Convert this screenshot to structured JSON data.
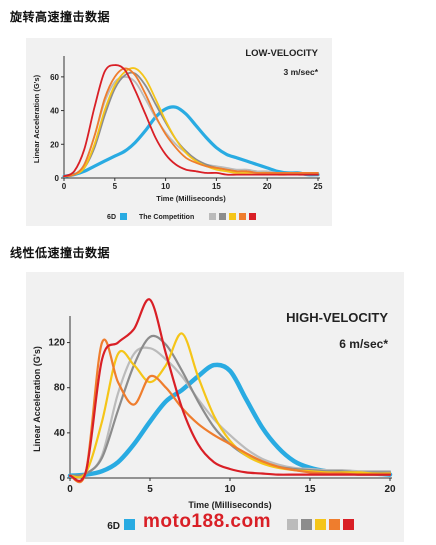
{
  "headings": {
    "top": "旋转高速撞击数据",
    "middle": "线性低速撞击数据"
  },
  "watermark": "moto188.com",
  "chart_data": [
    {
      "type": "line",
      "title": "LOW-VELOCITY",
      "subtitle": "3 m/sec*",
      "xlabel": "Time (Milliseconds)",
      "ylabel": "Linear Acceleration (G's)",
      "xlim": [
        0,
        25
      ],
      "ylim": [
        0,
        70
      ],
      "xticks": [
        "0",
        "5",
        "10",
        "15",
        "20",
        "25"
      ],
      "yticks": [
        "0",
        "20",
        "40",
        "60"
      ],
      "legend": {
        "primary": "6D",
        "secondary": "The Competition",
        "placement": "bottom"
      },
      "series": [
        {
          "name": "6D",
          "color": "#29abe2",
          "x": [
            0,
            1,
            2,
            3,
            4,
            5,
            6,
            7,
            8,
            9,
            10,
            11,
            12,
            13,
            14,
            15,
            16,
            17,
            18,
            19,
            20,
            21,
            22,
            23,
            24,
            25
          ],
          "y": [
            1,
            2,
            4,
            7,
            10,
            13,
            16,
            21,
            28,
            36,
            41,
            42,
            38,
            31,
            24,
            18,
            14,
            12,
            10,
            8,
            6,
            4,
            3,
            3,
            2,
            2
          ]
        },
        {
          "color": "#bbbbbb",
          "x": [
            0,
            1,
            2,
            3,
            4,
            5,
            6,
            7,
            8,
            9,
            10,
            11,
            12,
            13,
            14,
            15,
            16,
            17,
            18,
            19,
            20,
            21,
            22,
            23,
            24,
            25
          ],
          "y": [
            1,
            2,
            8,
            25,
            45,
            57,
            60,
            57,
            47,
            36,
            27,
            20,
            15,
            11,
            8,
            7,
            6,
            5,
            5,
            4,
            4,
            3,
            3,
            3,
            3,
            3
          ]
        },
        {
          "color": "#8c8c8c",
          "x": [
            0,
            1,
            2,
            3,
            4,
            5,
            6,
            7,
            8,
            9,
            10,
            11,
            12,
            13,
            14,
            15,
            16,
            17,
            18,
            19,
            20,
            21,
            22,
            23,
            24,
            25
          ],
          "y": [
            1,
            2,
            6,
            18,
            37,
            53,
            61,
            62,
            55,
            44,
            33,
            23,
            16,
            11,
            8,
            6,
            5,
            4,
            4,
            3,
            3,
            3,
            3,
            2,
            2,
            2
          ]
        },
        {
          "color": "#f5c518",
          "x": [
            0,
            1,
            2,
            3,
            4,
            5,
            6,
            7,
            8,
            9,
            10,
            11,
            12,
            13,
            14,
            15,
            16,
            17,
            18,
            19,
            20,
            21,
            22,
            23,
            24,
            25
          ],
          "y": [
            1,
            2,
            6,
            20,
            40,
            55,
            63,
            65,
            59,
            47,
            34,
            23,
            15,
            10,
            7,
            5,
            4,
            3,
            3,
            3,
            3,
            2,
            2,
            2,
            2,
            2
          ]
        },
        {
          "color": "#ef7d2d",
          "x": [
            0,
            1,
            2,
            3,
            4,
            5,
            6,
            7,
            8,
            9,
            10,
            11,
            12,
            13,
            14,
            15,
            16,
            17,
            18,
            19,
            20,
            21,
            22,
            23,
            24,
            25
          ],
          "y": [
            1,
            2,
            8,
            25,
            47,
            60,
            65,
            61,
            50,
            37,
            26,
            18,
            12,
            9,
            7,
            6,
            5,
            4,
            4,
            3,
            3,
            3,
            3,
            3,
            3,
            3
          ]
        },
        {
          "color": "#d91f26",
          "x": [
            0,
            1,
            2,
            3,
            4,
            5,
            6,
            7,
            8,
            9,
            10,
            11,
            12,
            13,
            14,
            15,
            16,
            17,
            18,
            19,
            20,
            21,
            22,
            23,
            24,
            25
          ],
          "y": [
            1,
            4,
            17,
            42,
            63,
            67,
            64,
            52,
            38,
            24,
            14,
            8,
            5,
            4,
            3,
            3,
            2,
            2,
            2,
            2,
            2,
            2,
            2,
            2,
            2,
            2
          ]
        }
      ]
    },
    {
      "type": "line",
      "title": "HIGH-VELOCITY",
      "subtitle": "6 m/sec*",
      "xlabel": "Time (Milliseconds)",
      "ylabel": "Linear Acceleration (G's)",
      "xlim": [
        0,
        20
      ],
      "ylim": [
        0,
        140
      ],
      "xticks": [
        "0",
        "5",
        "10",
        "15",
        "20"
      ],
      "yticks": [
        "0",
        "40",
        "80",
        "120"
      ],
      "legend": {
        "primary": "6D",
        "placement": "bottom"
      },
      "series": [
        {
          "name": "6D",
          "color": "#29abe2",
          "x": [
            0,
            1,
            2,
            3,
            4,
            5,
            6,
            7,
            8,
            9,
            10,
            11,
            12,
            13,
            14,
            15,
            16,
            17,
            18,
            19,
            20
          ],
          "y": [
            2,
            3,
            6,
            14,
            30,
            50,
            68,
            78,
            90,
            100,
            95,
            70,
            45,
            27,
            15,
            9,
            6,
            5,
            4,
            4,
            3
          ]
        },
        {
          "color": "#bbbbbb",
          "x": [
            0,
            1,
            2,
            3,
            4,
            5,
            6,
            7,
            8,
            9,
            10,
            11,
            12,
            13,
            14,
            15,
            16,
            17,
            18,
            19,
            20
          ],
          "y": [
            2,
            4,
            20,
            75,
            110,
            115,
            105,
            90,
            70,
            52,
            38,
            26,
            17,
            12,
            9,
            8,
            7,
            7,
            6,
            6,
            6
          ]
        },
        {
          "color": "#8c8c8c",
          "x": [
            0,
            1,
            2,
            3,
            4,
            5,
            6,
            7,
            8,
            9,
            10,
            11,
            12,
            13,
            14,
            15,
            16,
            17,
            18,
            19,
            20
          ],
          "y": [
            2,
            4,
            18,
            60,
            100,
            125,
            118,
            95,
            68,
            45,
            30,
            20,
            14,
            10,
            8,
            7,
            6,
            6,
            5,
            5,
            5
          ]
        },
        {
          "color": "#f5c518",
          "x": [
            0,
            1,
            2,
            3,
            4,
            5,
            6,
            7,
            8,
            9,
            10,
            11,
            12,
            13,
            14,
            15,
            16,
            17,
            18,
            19,
            20
          ],
          "y": [
            2,
            5,
            50,
            110,
            100,
            85,
            100,
            128,
            90,
            55,
            33,
            20,
            13,
            9,
            7,
            6,
            5,
            5,
            5,
            4,
            4
          ]
        },
        {
          "color": "#ef7d2d",
          "x": [
            0,
            1,
            2,
            3,
            4,
            5,
            6,
            7,
            8,
            9,
            10,
            11,
            12,
            13,
            14,
            15,
            16,
            17,
            18,
            19,
            20
          ],
          "y": [
            2,
            6,
            120,
            85,
            65,
            90,
            80,
            62,
            48,
            38,
            30,
            22,
            15,
            10,
            7,
            5,
            4,
            4,
            3,
            3,
            3
          ]
        },
        {
          "color": "#d91f26",
          "x": [
            0,
            1,
            2,
            3,
            4,
            5,
            6,
            7,
            8,
            9,
            10,
            11,
            12,
            13,
            14,
            15,
            16,
            17,
            18,
            19,
            20
          ],
          "y": [
            2,
            6,
            105,
            120,
            132,
            158,
            110,
            62,
            30,
            14,
            8,
            5,
            4,
            3,
            3,
            3,
            3,
            3,
            3,
            3,
            3
          ]
        }
      ]
    }
  ]
}
